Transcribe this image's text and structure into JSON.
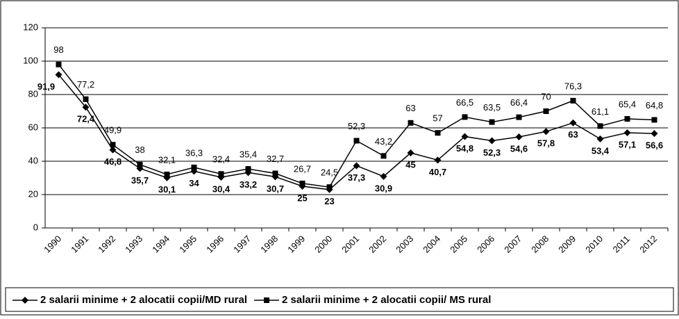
{
  "chart_data": {
    "type": "line",
    "categories": [
      "1990",
      "1991",
      "1992",
      "1993",
      "1994",
      "1995",
      "1996",
      "1997",
      "1998",
      "1999",
      "2000",
      "2001",
      "2002",
      "2003",
      "2004",
      "2005",
      "2006",
      "2007",
      "2008",
      "2009",
      "2010",
      "2011",
      "2012"
    ],
    "series": [
      {
        "name": "2 salarii minime + 2 alocatii copii/MD rural",
        "color": "#000000",
        "marker": "diamond",
        "values": [
          91.9,
          72.4,
          46.8,
          35.7,
          30.1,
          34,
          30.4,
          33.2,
          30.7,
          25,
          23,
          37.3,
          30.9,
          45,
          40.7,
          54.8,
          52.3,
          54.6,
          57.8,
          63,
          53.4,
          57.1,
          56.6
        ],
        "value_labels": [
          "91,9",
          "72,4",
          "46,8",
          "35,7",
          "30,1",
          "34",
          "30,4",
          "33,2",
          "30,7",
          "25",
          "23",
          "37,3",
          "30,9",
          "45",
          "40,7",
          "54,8",
          "52,3",
          "54,6",
          "57,8",
          "63",
          "53,4",
          "57,1",
          "56,6"
        ]
      },
      {
        "name": "2 salarii minime + 2 alocatii copii/ MS rural",
        "color": "#000000",
        "marker": "square",
        "values": [
          98,
          77.2,
          49.9,
          38,
          32.1,
          36.3,
          32.4,
          35.4,
          32.7,
          26.7,
          24.5,
          52.3,
          43.2,
          63,
          57,
          66.5,
          63.5,
          66.4,
          70,
          76.3,
          61.1,
          65.4,
          64.8
        ],
        "value_labels": [
          "98",
          "77,2",
          "49,9",
          "38",
          "32,1",
          "36,3",
          "32,4",
          "35,4",
          "32,7",
          "26,7",
          "24,5",
          "52,3",
          "43,2",
          "63",
          "57",
          "66,5",
          "63,5",
          "66,4",
          "70",
          "76,3",
          "61,1",
          "65,4",
          "64,8"
        ]
      }
    ],
    "ylim": [
      0,
      120
    ],
    "yticks": [
      0,
      20,
      40,
      60,
      80,
      100,
      120
    ],
    "grid": true,
    "legend": "bottom"
  }
}
